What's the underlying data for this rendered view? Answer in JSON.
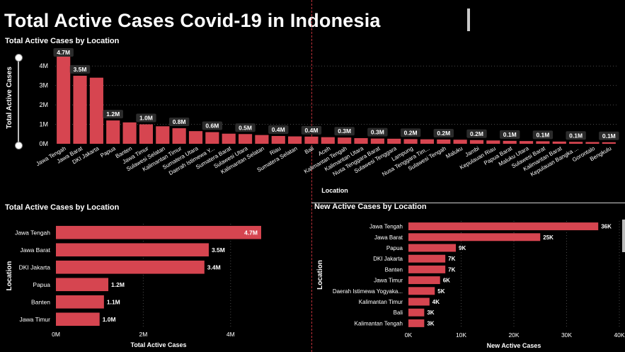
{
  "page": {
    "title": "Total Active Cases Covid-19 in Indonesia"
  },
  "colors": {
    "bar": "#d64550",
    "grid": "#4a4a4a",
    "label_bg": "#2b2b2b",
    "divider": "#c0303a"
  },
  "chart_data": [
    {
      "id": "top",
      "type": "bar",
      "title": "Total Active Cases by Location",
      "xlabel": "Location",
      "ylabel": "Total Active Cases",
      "ylim": [
        0,
        4700000
      ],
      "yticks": [
        0,
        1000000,
        2000000,
        3000000,
        4000000
      ],
      "ytick_labels": [
        "0M",
        "1M",
        "2M",
        "3M",
        "4M"
      ],
      "grid": true,
      "categories": [
        "Jawa Tengah",
        "Jawa Barat",
        "DKI Jakarta",
        "Papua",
        "Banten",
        "Jawa Timur",
        "Sulawesi Selatan",
        "Kalimantan Timur",
        "Sumatera Utara",
        "Daerah Istimewa Y...",
        "Sumatera Barat",
        "Sulawesi Utara",
        "Kalimantan Selatan",
        "Riau",
        "Sumatera Selatan",
        "Bali",
        "Aceh",
        "Kalimantan Tengah",
        "Kalimantan Utara",
        "Nusa Tenggara Barat",
        "Sulawesi Tenggara",
        "Lampung",
        "Nusa Tenggara Tim...",
        "Sulawesi Tengah",
        "Maluku",
        "Jambi",
        "Kepulauan Riau",
        "Papua Barat",
        "Maluku Utara",
        "Sulawesi Barat",
        "Kalimantan Barat",
        "Kepulauan Bangka ...",
        "Gorontalo",
        "Bengkulu"
      ],
      "values": [
        4700000,
        3500000,
        3400000,
        1200000,
        1100000,
        1000000,
        900000,
        800000,
        650000,
        600000,
        520000,
        500000,
        450000,
        400000,
        380000,
        370000,
        340000,
        320000,
        290000,
        270000,
        260000,
        240000,
        230000,
        220000,
        210000,
        190000,
        170000,
        150000,
        140000,
        130000,
        115000,
        100000,
        90000,
        80000
      ],
      "data_labels": [
        "4.7M",
        "3.5M",
        "",
        "1.2M",
        "",
        "1.0M",
        "",
        "0.8M",
        "",
        "0.6M",
        "",
        "0.5M",
        "",
        "0.4M",
        "",
        "0.4M",
        "",
        "0.3M",
        "",
        "0.3M",
        "",
        "0.2M",
        "",
        "0.2M",
        "",
        "0.2M",
        "",
        "0.1M",
        "",
        "0.1M",
        "",
        "0.1M",
        "",
        "0.1M"
      ]
    },
    {
      "id": "bottom_left",
      "type": "bar",
      "orientation": "horizontal",
      "title": "Total Active Cases by Location",
      "xlabel": "Total Active Cases",
      "ylabel": "Location",
      "xlim": [
        0,
        4700000
      ],
      "xticks": [
        0,
        2000000,
        4000000
      ],
      "xtick_labels": [
        "0M",
        "2M",
        "4M"
      ],
      "categories": [
        "Jawa Tengah",
        "Jawa Barat",
        "DKI Jakarta",
        "Papua",
        "Banten",
        "Jawa Timur"
      ],
      "values": [
        4700000,
        3500000,
        3400000,
        1200000,
        1100000,
        1000000
      ],
      "data_labels": [
        "4.7M",
        "3.5M",
        "3.4M",
        "1.2M",
        "1.1M",
        "1.0M"
      ]
    },
    {
      "id": "bottom_right",
      "type": "bar",
      "orientation": "horizontal",
      "title": "New Active Cases by Location",
      "xlabel": "New Active Cases",
      "ylabel": "Location",
      "xlim": [
        0,
        40000
      ],
      "xticks": [
        0,
        10000,
        20000,
        30000,
        40000
      ],
      "xtick_labels": [
        "0K",
        "10K",
        "20K",
        "30K",
        "40K"
      ],
      "categories": [
        "Jawa Tengah",
        "Jawa Barat",
        "Papua",
        "DKI Jakarta",
        "Banten",
        "Jawa Timur",
        "Daerah Istimewa Yogyaka...",
        "Kalimantan Timur",
        "Bali",
        "Kalimantan Tengah"
      ],
      "values": [
        36000,
        25000,
        9000,
        7000,
        7000,
        6000,
        5000,
        4000,
        3000,
        3000
      ],
      "data_labels": [
        "36K",
        "25K",
        "9K",
        "7K",
        "7K",
        "6K",
        "5K",
        "4K",
        "3K",
        "3K"
      ]
    }
  ]
}
